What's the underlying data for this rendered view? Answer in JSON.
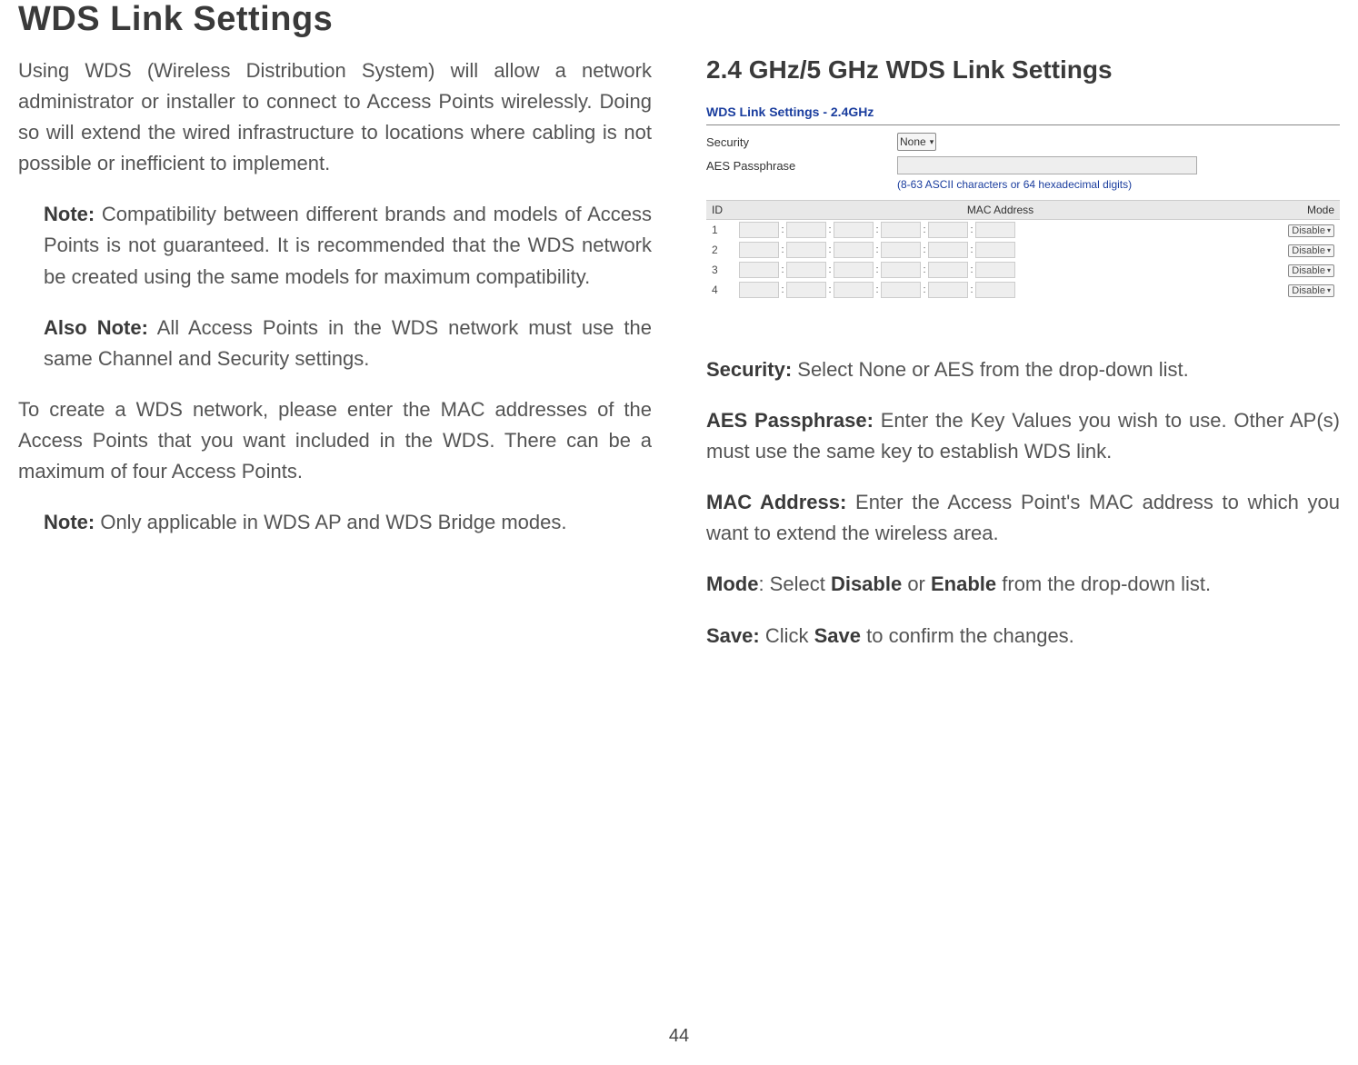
{
  "page": {
    "title": "WDS Link Settings",
    "number": "44"
  },
  "left": {
    "intro": "Using WDS (Wireless Distribution System) will allow a network administrator or installer to connect to Access Points wirelessly. Doing so will extend the wired infrastructure to locations where cabling is not possible or inefficient to implement.",
    "note1_label": "Note:",
    "note1_text": " Compatibility between different brands and models of Access Points is not guaranteed. It is recommended that the WDS network be created using the same models for maximum compatibility.",
    "also_label": "Also Note:",
    "also_text": " All Access Points in the WDS network must use the same Channel and Security settings.",
    "para2": "To create a WDS network, please enter the MAC addresses of the Access Points that you want included in the WDS. There can be a maximum of four Access Points.",
    "note2_label": "Note:",
    "note2_text": " Only applicable in WDS AP and WDS Bridge modes."
  },
  "right": {
    "heading": "2.4 GHz/5 GHz WDS Link Settings",
    "screenshot": {
      "title": "WDS Link Settings - 2.4GHz",
      "security_label": "Security",
      "security_value": "None",
      "pass_label": "AES Passphrase",
      "pass_hint": "(8-63 ASCII characters or 64 hexadecimal digits)",
      "cols": {
        "id": "ID",
        "mac": "MAC Address",
        "mode": "Mode"
      },
      "rows": [
        {
          "id": "1",
          "mode": "Disable"
        },
        {
          "id": "2",
          "mode": "Disable"
        },
        {
          "id": "3",
          "mode": "Disable"
        },
        {
          "id": "4",
          "mode": "Disable"
        }
      ]
    },
    "desc": {
      "security_b": "Security:",
      "security_t": " Select None or AES from the drop-down list.",
      "aes_b": "AES Passphrase:",
      "aes_t": " Enter the Key Values you wish to use. Other AP(s) must use the same key to establish WDS link.",
      "mac_b": "MAC Address:",
      "mac_t": " Enter the Access Point's MAC address to which you want to extend the wireless area.",
      "mode_b": "Mode",
      "mode_t": ": Select ",
      "mode_disable": "Disable",
      "mode_or": " or ",
      "mode_enable": "Enable",
      "mode_end": " from the drop-down list.",
      "save_b": "Save:",
      "save_t": " Click ",
      "save_btn": "Save",
      "save_end": " to confirm the changes."
    }
  }
}
